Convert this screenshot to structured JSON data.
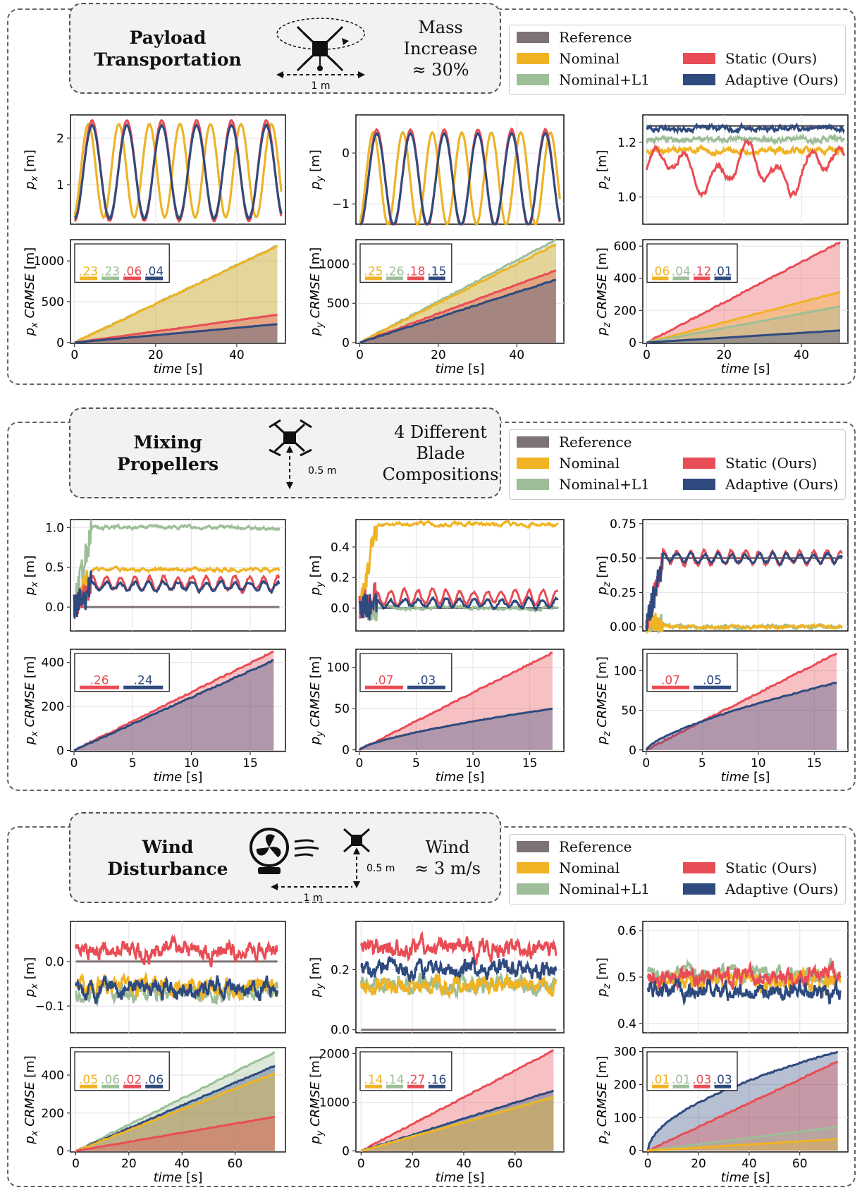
{
  "legend": {
    "reference": "Reference",
    "nominal": "Nominal",
    "nominal_l1": "Nominal+L1",
    "static": "Static (Ours)",
    "adaptive": "Adaptive (Ours)"
  },
  "colors": {
    "reference": "#7d7374",
    "nominal": "#f0b323",
    "nominal_l1": "#9dbe98",
    "static": "#e84d55",
    "adaptive": "#2e4a7e"
  },
  "sections": [
    {
      "title": "Payload\nTransportation",
      "condition": "Mass\nIncrease\n≈ 30%",
      "icon_label": "1 m"
    },
    {
      "title": "Mixing\nPropellers",
      "condition": "4 Different\nBlade\nCompositions",
      "icon_label": "0.5 m"
    },
    {
      "title": "Wind\nDisturbance",
      "condition": "Wind\n≈ 3 m/s",
      "icon_label_1": "0.5 m",
      "icon_label_2": "1 m"
    }
  ],
  "chart_data": [
    {
      "section": 0,
      "type": "line",
      "ylabel": "p_x [m]",
      "yticks": [
        "1",
        "2"
      ],
      "ylim": [
        0.15,
        2.5
      ],
      "xlim": [
        -1,
        51
      ],
      "series": [
        {
          "name": "Reference",
          "freq": 0.1186,
          "offset": 1.3,
          "amp": 1.0,
          "phase": 0
        },
        {
          "name": "Nominal",
          "freq": 0.1355,
          "offset": 1.3,
          "amp": 1.0,
          "phase": 0.3
        },
        {
          "name": "Nominal+L1",
          "freq": 0.1355,
          "offset": 1.3,
          "amp": 1.0,
          "phase": 0.3
        },
        {
          "name": "Static (Ours)",
          "freq": 0.1186,
          "offset": 1.3,
          "amp": 1.08,
          "phase": 0
        },
        {
          "name": "Adaptive (Ours)",
          "freq": 0.1186,
          "offset": 1.27,
          "amp": 1.0,
          "phase": 0
        }
      ]
    },
    {
      "section": 0,
      "type": "line",
      "ylabel": "p_y [m]",
      "yticks": [
        "−1",
        "0"
      ],
      "ylim": [
        -1.4,
        0.75
      ],
      "xlim": [
        -1,
        51
      ],
      "series": [
        {
          "name": "Reference",
          "freq": 0.1186,
          "offset": -0.5,
          "amp": 0.9,
          "phase": 0
        },
        {
          "name": "Nominal",
          "freq": 0.1355,
          "offset": -0.5,
          "amp": 0.9,
          "phase": 0.3
        },
        {
          "name": "Nominal+L1",
          "freq": 0.1355,
          "offset": -0.5,
          "amp": 0.9,
          "phase": 0.3
        },
        {
          "name": "Static (Ours)",
          "freq": 0.1186,
          "offset": -0.5,
          "amp": 0.96,
          "phase": 0
        },
        {
          "name": "Adaptive (Ours)",
          "freq": 0.1186,
          "offset": -0.52,
          "amp": 0.9,
          "phase": 0
        }
      ]
    },
    {
      "section": 0,
      "type": "line",
      "ylabel": "p_z [m]",
      "yticks": [
        "1.0",
        "1.2"
      ],
      "ylim": [
        0.9,
        1.3
      ],
      "xlim": [
        -1,
        51
      ],
      "series": [
        {
          "name": "Reference",
          "level": 1.26
        },
        {
          "name": "Nominal",
          "level": 1.17
        },
        {
          "name": "Nominal+L1",
          "level": 1.21
        },
        {
          "name": "Static (Ours)",
          "level": 1.1
        },
        {
          "name": "Adaptive (Ours)",
          "level": 1.25
        }
      ]
    },
    {
      "section": 0,
      "type": "area",
      "ylabel": "p_x CRMSE [m]",
      "xlabel": "time [s]",
      "xticks": [
        "0",
        "20",
        "40"
      ],
      "yticks": [
        "0",
        "500",
        "1000"
      ],
      "xlim": [
        -1,
        52
      ],
      "ylim": [
        -10,
        1260
      ],
      "final": {
        "Nominal": 1180,
        "Nominal+L1": 1185,
        "Static (Ours)": 340,
        "Adaptive (Ours)": 225
      },
      "bars": [
        {
          "name": "Nominal",
          "label": ".23"
        },
        {
          "name": "Nominal+L1",
          "label": ".23"
        },
        {
          "name": "Static (Ours)",
          "label": ".06"
        },
        {
          "name": "Adaptive (Ours)",
          "label": ".04"
        }
      ]
    },
    {
      "section": 0,
      "type": "area",
      "ylabel": "p_y CRMSE [m]",
      "xlabel": "time [s]",
      "xticks": [
        "0",
        "20",
        "40"
      ],
      "yticks": [
        "0",
        "500",
        "1000"
      ],
      "xlim": [
        -1,
        52
      ],
      "ylim": [
        -10,
        1310
      ],
      "final": {
        "Nominal": 1250,
        "Nominal+L1": 1310,
        "Static (Ours)": 920,
        "Adaptive (Ours)": 800
      },
      "bars": [
        {
          "name": "Nominal",
          "label": ".25"
        },
        {
          "name": "Nominal+L1",
          "label": ".26"
        },
        {
          "name": "Static (Ours)",
          "label": ".18"
        },
        {
          "name": "Adaptive (Ours)",
          "label": ".15"
        }
      ]
    },
    {
      "section": 0,
      "type": "area",
      "ylabel": "p_z CRMSE [m]",
      "xlabel": "time [s]",
      "xticks": [
        "0",
        "20",
        "40"
      ],
      "yticks": [
        "0",
        "200",
        "400",
        "600"
      ],
      "xlim": [
        -1,
        52
      ],
      "ylim": [
        -5,
        640
      ],
      "final": {
        "Nominal": 315,
        "Nominal+L1": 225,
        "Static (Ours)": 625,
        "Adaptive (Ours)": 75
      },
      "bars": [
        {
          "name": "Nominal",
          "label": ".06"
        },
        {
          "name": "Nominal+L1",
          "label": ".04"
        },
        {
          "name": "Static (Ours)",
          "label": ".12"
        },
        {
          "name": "Adaptive (Ours)",
          "label": ".01"
        }
      ]
    },
    {
      "section": 1,
      "type": "line",
      "ylabel": "p_x [m]",
      "yticks": [
        "0.0",
        "0.5",
        "1.0"
      ],
      "ylim": [
        -0.3,
        1.1
      ],
      "xlim": [
        -0.3,
        17.5
      ],
      "series": [
        {
          "name": "Reference",
          "level": 0.0
        },
        {
          "name": "Nominal",
          "level": 0.47
        },
        {
          "name": "Nominal+L1",
          "level": 1.0
        },
        {
          "name": "Static (Ours)",
          "level": 0.3
        },
        {
          "name": "Adaptive (Ours)",
          "level": 0.26
        }
      ]
    },
    {
      "section": 1,
      "type": "line",
      "ylabel": "p_y [m]",
      "yticks": [
        "0.0",
        "0.2",
        "0.4"
      ],
      "ylim": [
        -0.15,
        0.58
      ],
      "xlim": [
        -0.3,
        17.5
      ],
      "series": [
        {
          "name": "Reference",
          "level": 0.0
        },
        {
          "name": "Nominal",
          "level": 0.55
        },
        {
          "name": "Nominal+L1",
          "level": 0.0
        },
        {
          "name": "Static (Ours)",
          "level": 0.07
        },
        {
          "name": "Adaptive (Ours)",
          "level": 0.03
        }
      ]
    },
    {
      "section": 1,
      "type": "line",
      "ylabel": "p_z [m]",
      "yticks": [
        "0.00",
        "0.25",
        "0.50",
        "0.75"
      ],
      "ylim": [
        -0.03,
        0.78
      ],
      "xlim": [
        -0.3,
        17.5
      ],
      "series": [
        {
          "name": "Reference",
          "level": 0.5
        },
        {
          "name": "Nominal",
          "level": 0.0
        },
        {
          "name": "Nominal+L1",
          "level": 0.0
        },
        {
          "name": "Static (Ours)",
          "level": 0.5
        },
        {
          "name": "Adaptive (Ours)",
          "level": 0.5
        }
      ]
    },
    {
      "section": 1,
      "type": "area",
      "ylabel": "p_x CRMSE [m]",
      "xlabel": "time [s]",
      "xticks": [
        "0",
        "5",
        "10",
        "15"
      ],
      "yticks": [
        "0",
        "200",
        "400"
      ],
      "xlim": [
        -0.3,
        18
      ],
      "ylim": [
        -5,
        460
      ],
      "final": {
        "Static (Ours)": 450,
        "Adaptive (Ours)": 410
      },
      "bars": [
        {
          "name": "Static (Ours)",
          "label": ".26"
        },
        {
          "name": "Adaptive (Ours)",
          "label": ".24"
        }
      ]
    },
    {
      "section": 1,
      "type": "area",
      "ylabel": "p_y CRMSE [m]",
      "xlabel": "time [s]",
      "xticks": [
        "0",
        "5",
        "10",
        "15"
      ],
      "yticks": [
        "0",
        "50",
        "100"
      ],
      "xlim": [
        -0.3,
        18
      ],
      "ylim": [
        -2,
        122
      ],
      "final": {
        "Static (Ours)": 118,
        "Adaptive (Ours)": 50
      },
      "bars": [
        {
          "name": "Static (Ours)",
          "label": ".07"
        },
        {
          "name": "Adaptive (Ours)",
          "label": ".03"
        }
      ]
    },
    {
      "section": 1,
      "type": "area",
      "ylabel": "p_z CRMSE [m]",
      "xlabel": "time [s]",
      "xticks": [
        "0",
        "5",
        "10",
        "15"
      ],
      "yticks": [
        "0",
        "50",
        "100"
      ],
      "xlim": [
        -0.3,
        18
      ],
      "ylim": [
        -2,
        127
      ],
      "final": {
        "Static (Ours)": 122,
        "Adaptive (Ours)": 85
      },
      "bars": [
        {
          "name": "Static (Ours)",
          "label": ".07"
        },
        {
          "name": "Adaptive (Ours)",
          "label": ".05"
        }
      ]
    },
    {
      "section": 2,
      "type": "line",
      "ylabel": "p_x [m]",
      "yticks": [
        "−0.1",
        "0.0"
      ],
      "ylim": [
        -0.16,
        0.09
      ],
      "xlim": [
        -2,
        78
      ],
      "series": [
        {
          "name": "Reference",
          "level": 0.0
        },
        {
          "name": "Nominal",
          "level": -0.055
        },
        {
          "name": "Nominal+L1",
          "level": -0.07
        },
        {
          "name": "Static (Ours)",
          "level": 0.025
        },
        {
          "name": "Adaptive (Ours)",
          "level": -0.06
        }
      ]
    },
    {
      "section": 2,
      "type": "line",
      "ylabel": "p_y [m]",
      "yticks": [
        "0.0",
        "0.2"
      ],
      "ylim": [
        -0.01,
        0.36
      ],
      "xlim": [
        -2,
        78
      ],
      "series": [
        {
          "name": "Reference",
          "level": 0.0
        },
        {
          "name": "Nominal",
          "level": 0.15
        },
        {
          "name": "Nominal+L1",
          "level": 0.145
        },
        {
          "name": "Static (Ours)",
          "level": 0.27
        },
        {
          "name": "Adaptive (Ours)",
          "level": 0.2
        }
      ]
    },
    {
      "section": 2,
      "type": "line",
      "ylabel": "p_z [m]",
      "yticks": [
        "0.4",
        "0.5",
        "0.6"
      ],
      "ylim": [
        0.38,
        0.62
      ],
      "xlim": [
        -2,
        78
      ],
      "series": [
        {
          "name": "Reference",
          "level": 0.5
        },
        {
          "name": "Nominal",
          "level": 0.49
        },
        {
          "name": "Nominal+L1",
          "level": 0.505
        },
        {
          "name": "Static (Ours)",
          "level": 0.5
        },
        {
          "name": "Adaptive (Ours)",
          "level": 0.47
        }
      ]
    },
    {
      "section": 2,
      "type": "area",
      "ylabel": "p_x CRMSE [m]",
      "xlabel": "time [s]",
      "xticks": [
        "0",
        "20",
        "40",
        "60"
      ],
      "yticks": [
        "0",
        "200",
        "400"
      ],
      "xlim": [
        -2,
        79
      ],
      "ylim": [
        -5,
        545
      ],
      "final": {
        "Nominal": 410,
        "Nominal+L1": 520,
        "Static (Ours)": 180,
        "Adaptive (Ours)": 450
      },
      "bars": [
        {
          "name": "Nominal",
          "label": ".05"
        },
        {
          "name": "Nominal+L1",
          "label": ".06"
        },
        {
          "name": "Static (Ours)",
          "label": ".02"
        },
        {
          "name": "Adaptive (Ours)",
          "label": ".06"
        }
      ]
    },
    {
      "section": 2,
      "type": "area",
      "ylabel": "p_y CRMSE [m]",
      "xlabel": "time [s]",
      "xticks": [
        "0",
        "20",
        "40",
        "60"
      ],
      "yticks": [
        "0",
        "1000",
        "2000"
      ],
      "xlim": [
        -2,
        79
      ],
      "ylim": [
        -20,
        2120
      ],
      "final": {
        "Nominal": 1100,
        "Nominal+L1": 1120,
        "Static (Ours)": 2060,
        "Adaptive (Ours)": 1240
      },
      "bars": [
        {
          "name": "Nominal",
          "label": ".14"
        },
        {
          "name": "Nominal+L1",
          "label": ".14"
        },
        {
          "name": "Static (Ours)",
          "label": ".27"
        },
        {
          "name": "Adaptive (Ours)",
          "label": ".16"
        }
      ]
    },
    {
      "section": 2,
      "type": "area",
      "ylabel": "p_z CRMSE [m]",
      "xlabel": "time [s]",
      "xticks": [
        "0",
        "20",
        "40",
        "60"
      ],
      "yticks": [
        "0",
        "100",
        "200",
        "300"
      ],
      "xlim": [
        -2,
        79
      ],
      "ylim": [
        -4,
        312
      ],
      "final": {
        "Nominal": 35,
        "Nominal+L1": 72,
        "Static (Ours)": 270,
        "Adaptive (Ours)": 300
      },
      "bars": [
        {
          "name": "Nominal",
          "label": ".01"
        },
        {
          "name": "Nominal+L1",
          "label": ".01"
        },
        {
          "name": "Static (Ours)",
          "label": ".03"
        },
        {
          "name": "Adaptive (Ours)",
          "label": ".03"
        }
      ]
    }
  ]
}
